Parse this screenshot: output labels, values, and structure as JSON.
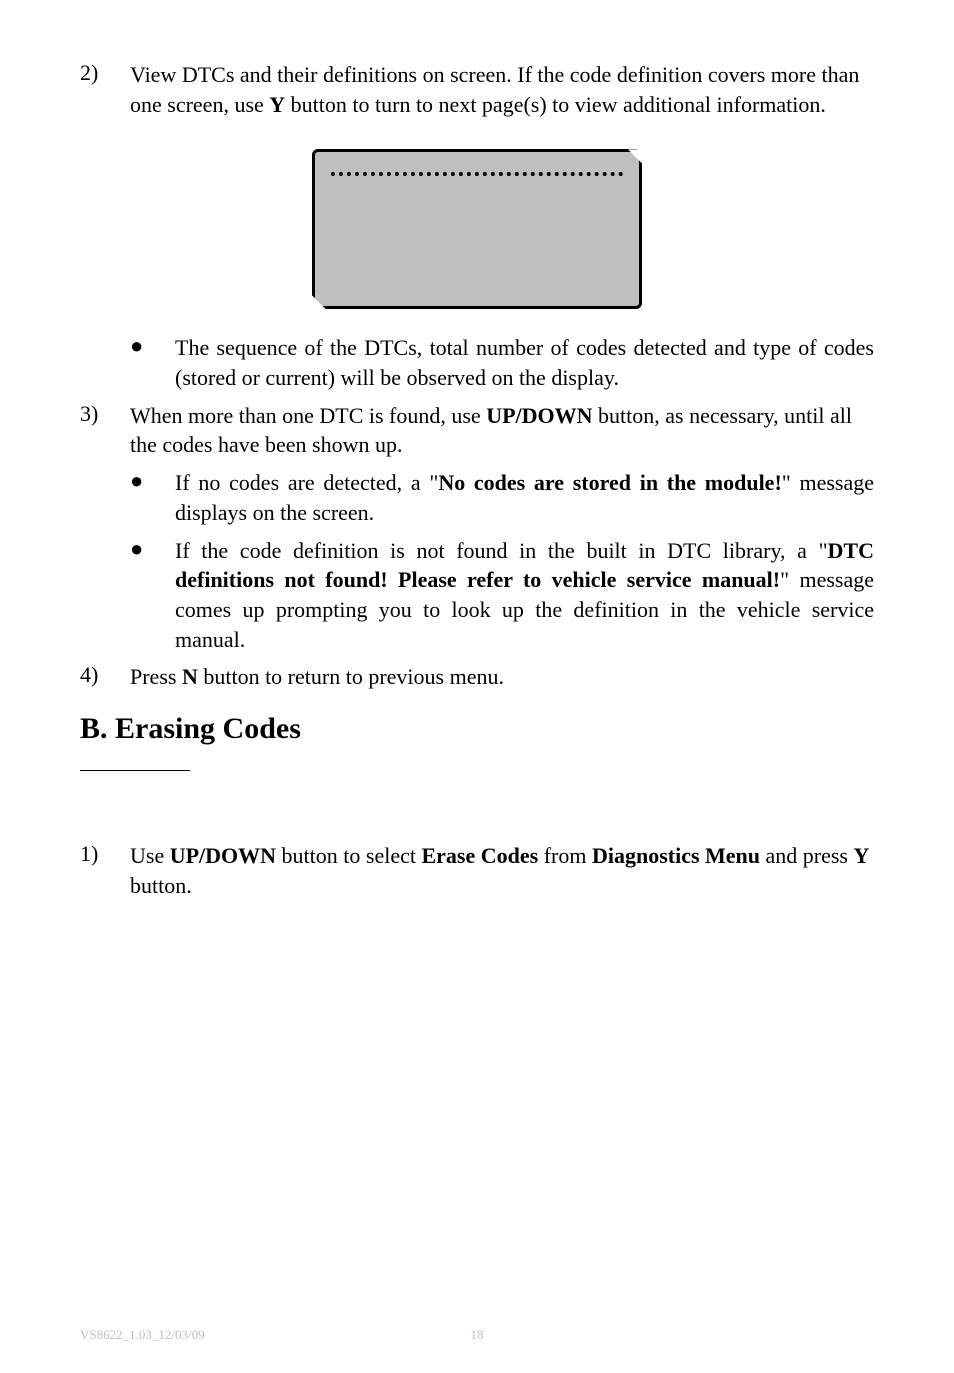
{
  "items": {
    "item2": {
      "num": "2)",
      "text_a": "View DTCs and their definitions on screen. If the code definition covers more than one screen, use ",
      "text_b": "Y",
      "text_c": " button to turn to next page(s) to view additional information."
    },
    "item2_bullet1": {
      "text": "The sequence of the DTCs, total number of codes detected and type of codes (stored or current) will be observed on the display."
    },
    "item3": {
      "num": "3)",
      "text_a": "When more than one DTC is found, use ",
      "text_b": "UP/DOWN",
      "text_c": " button, as necessary, until all the codes have been shown up."
    },
    "item3_bullet1": {
      "text_a": "If no codes are detected, a \"",
      "text_b": "No codes are stored in the module!",
      "text_c": "\" message displays on the screen."
    },
    "item3_bullet2": {
      "text_a": "If the code definition is not found in the built in DTC library, a \"",
      "text_b": "DTC definitions not found! Please refer to vehicle service manual!",
      "text_c": "\" message comes up prompting you to look up the definition in the vehicle service manual."
    },
    "item4": {
      "num": "4)",
      "text_a": "Press ",
      "text_b": "N",
      "text_c": " button to return to previous menu."
    },
    "heading": "B. Erasing Codes",
    "item_b1": {
      "num": "1)",
      "text_a": "Use ",
      "text_b": "UP/DOWN",
      "text_c": " button to select ",
      "text_d": "Erase Codes",
      "text_e": " from ",
      "text_f": "Diagnostics Menu",
      "text_g": " and press ",
      "text_h": "Y",
      "text_i": " button."
    }
  },
  "footer": {
    "left": "VS8622_1.03_12/03/09",
    "page": "18"
  },
  "colors": {
    "text": "#000000",
    "background": "#ffffff",
    "screen_bg": "#bfbfbf",
    "footer_text": "#bfbfbf"
  }
}
